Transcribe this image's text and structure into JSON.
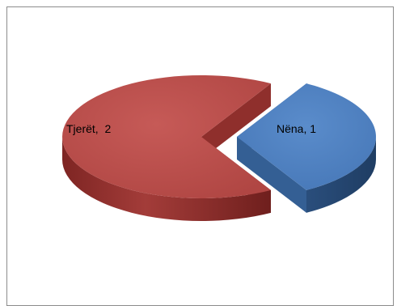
{
  "chart_data": {
    "type": "pie",
    "style": "3d-exploded",
    "labels": [
      "Nëna",
      "Tjerët"
    ],
    "values": [
      1,
      2
    ],
    "data_labels": [
      "Nëna, 1",
      "Tjerët,  2"
    ],
    "colors": [
      "#4f81bd",
      "#c0504d"
    ],
    "legend": "none",
    "title": ""
  }
}
